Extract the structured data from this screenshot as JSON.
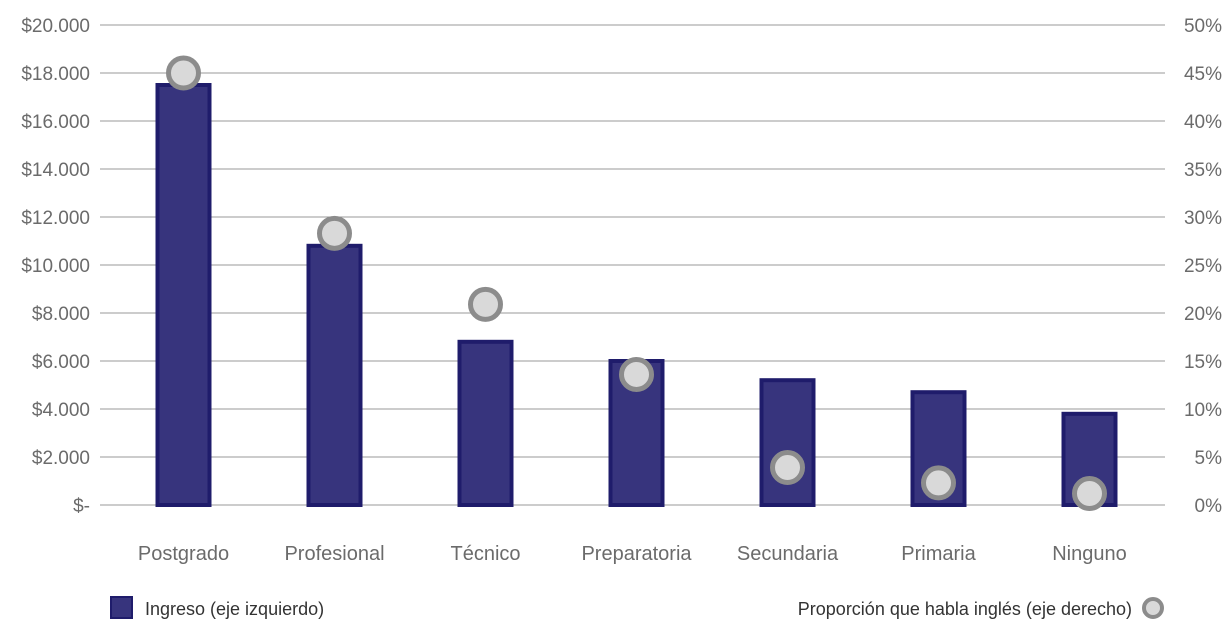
{
  "chart_data": {
    "type": "bar",
    "categories": [
      "Postgrado",
      "Profesional",
      "Técnico",
      "Preparatoria",
      "Secundaria",
      "Primaria",
      "Ninguno"
    ],
    "series": [
      {
        "name": "Ingreso (eje izquierdo)",
        "type": "bar",
        "axis": "left",
        "values": [
          17500,
          10800,
          6800,
          6000,
          5200,
          4700,
          3800
        ]
      },
      {
        "name": "Proporción que habla inglés (eje derecho)",
        "type": "scatter",
        "axis": "right",
        "values": [
          45,
          28.3,
          20.9,
          13.6,
          3.9,
          2.3,
          1.2
        ]
      }
    ],
    "left_axis": {
      "ylim": [
        0,
        20000
      ],
      "ticks": [
        0,
        2000,
        4000,
        6000,
        8000,
        10000,
        12000,
        14000,
        16000,
        18000,
        20000
      ],
      "tick_labels": [
        "$-",
        "$2.000",
        "$4.000",
        "$6.000",
        "$8.000",
        "$10.000",
        "$12.000",
        "$14.000",
        "$16.000",
        "$18.000",
        "$20.000"
      ]
    },
    "right_axis": {
      "ylim": [
        0,
        50
      ],
      "unit": "%",
      "tick_labels": [
        "0%",
        "5%",
        "10%",
        "15%",
        "20%",
        "25%",
        "30%",
        "35%",
        "40%",
        "45%",
        "50%"
      ]
    },
    "grid": true,
    "legend": [
      {
        "label": "Ingreso (eje izquierdo)",
        "placement": "bottom-left"
      },
      {
        "label": "Proporción que habla inglés (eje derecho)",
        "placement": "bottom-right"
      }
    ],
    "colors": {
      "bar_fill": "#37347d",
      "bar_stroke": "#1f1c6b",
      "marker_fill": "#d9d9d9",
      "marker_stroke": "#8c8c8c",
      "grid": "#9a9a9a"
    }
  }
}
